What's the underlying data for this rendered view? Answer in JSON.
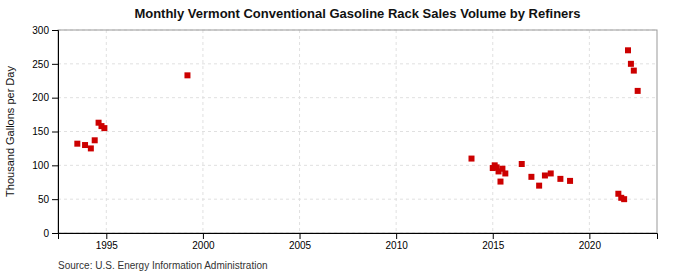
{
  "chart_data": {
    "type": "scatter",
    "title": "Monthly Vermont Conventional Gasoline Rack Sales Volume by Refiners",
    "ylabel": "Thousand Gallons per Day",
    "annotations": [
      "Source: U.S. Energy Information Administration"
    ],
    "color": "#cc0000",
    "marker": "square",
    "grid": true,
    "xlim": [
      1992.5,
      2023.5
    ],
    "ylim": [
      0,
      300
    ],
    "xticks": [
      1995,
      2000,
      2005,
      2010,
      2015,
      2020
    ],
    "yticks": [
      0,
      50,
      100,
      150,
      200,
      250,
      300
    ],
    "x": [
      1993.5,
      1993.9,
      1994.2,
      1994.4,
      1994.6,
      1994.75,
      1994.9,
      1999.2,
      2013.9,
      2015.0,
      2015.1,
      2015.2,
      2015.3,
      2015.4,
      2015.5,
      2015.65,
      2016.5,
      2017.0,
      2017.4,
      2017.7,
      2018.0,
      2018.5,
      2019.0,
      2021.5,
      2021.65,
      2021.8,
      2022.0,
      2022.15,
      2022.3,
      2022.5
    ],
    "values": [
      132,
      130,
      125,
      137,
      163,
      158,
      155,
      233,
      110,
      96,
      100,
      97,
      91,
      76,
      95,
      88,
      102,
      83,
      70,
      85,
      88,
      80,
      77,
      58,
      52,
      50,
      270,
      250,
      240,
      210
    ]
  }
}
